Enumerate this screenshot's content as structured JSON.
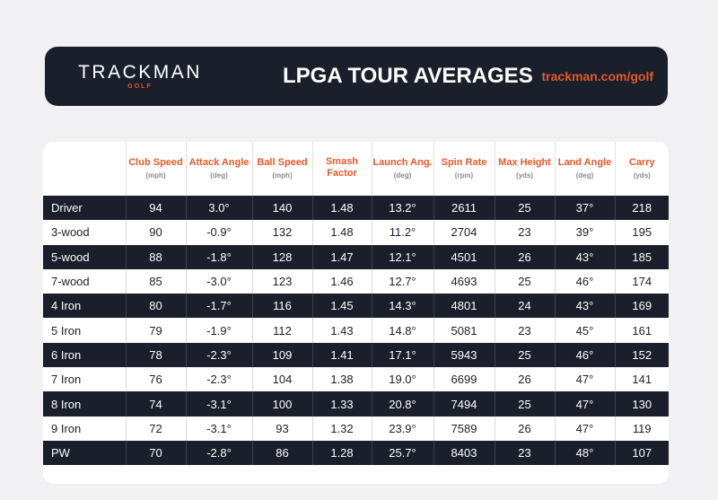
{
  "header": {
    "logo": "TRACKMAN",
    "logo_sub": "GOLF",
    "title": "LPGA TOUR AVERAGES",
    "url": "trackman.com/golf"
  },
  "table": {
    "columns": [
      {
        "name": "",
        "unit": ""
      },
      {
        "name": "Club Speed",
        "unit": "(mph)"
      },
      {
        "name": "Attack Angle",
        "unit": "(deg)"
      },
      {
        "name": "Ball Speed",
        "unit": "(mph)"
      },
      {
        "name": "Smash Factor",
        "unit": ""
      },
      {
        "name": "Launch Ang.",
        "unit": "(deg)"
      },
      {
        "name": "Spin Rate",
        "unit": "(rpm)"
      },
      {
        "name": "Max Height",
        "unit": "(yds)"
      },
      {
        "name": "Land Angle",
        "unit": "(deg)"
      },
      {
        "name": "Carry",
        "unit": "(yds)"
      }
    ],
    "rows": [
      {
        "club": "Driver",
        "club_speed": "94",
        "attack_angle": "3.0°",
        "ball_speed": "140",
        "smash_factor": "1.48",
        "launch_angle": "13.2°",
        "spin_rate": "2611",
        "max_height": "25",
        "land_angle": "37°",
        "carry": "218"
      },
      {
        "club": "3-wood",
        "club_speed": "90",
        "attack_angle": "-0.9°",
        "ball_speed": "132",
        "smash_factor": "1.48",
        "launch_angle": "11.2°",
        "spin_rate": "2704",
        "max_height": "23",
        "land_angle": "39°",
        "carry": "195"
      },
      {
        "club": "5-wood",
        "club_speed": "88",
        "attack_angle": "-1.8°",
        "ball_speed": "128",
        "smash_factor": "1.47",
        "launch_angle": "12.1°",
        "spin_rate": "4501",
        "max_height": "26",
        "land_angle": "43°",
        "carry": "185"
      },
      {
        "club": "7-wood",
        "club_speed": "85",
        "attack_angle": "-3.0°",
        "ball_speed": "123",
        "smash_factor": "1.46",
        "launch_angle": "12.7°",
        "spin_rate": "4693",
        "max_height": "25",
        "land_angle": "46°",
        "carry": "174"
      },
      {
        "club": "4 Iron",
        "club_speed": "80",
        "attack_angle": "-1.7°",
        "ball_speed": "116",
        "smash_factor": "1.45",
        "launch_angle": "14.3°",
        "spin_rate": "4801",
        "max_height": "24",
        "land_angle": "43°",
        "carry": "169"
      },
      {
        "club": "5 Iron",
        "club_speed": "79",
        "attack_angle": "-1.9°",
        "ball_speed": "112",
        "smash_factor": "1.43",
        "launch_angle": "14.8°",
        "spin_rate": "5081",
        "max_height": "23",
        "land_angle": "45°",
        "carry": "161"
      },
      {
        "club": "6 Iron",
        "club_speed": "78",
        "attack_angle": "-2.3°",
        "ball_speed": "109",
        "smash_factor": "1.41",
        "launch_angle": "17.1°",
        "spin_rate": "5943",
        "max_height": "25",
        "land_angle": "46°",
        "carry": "152"
      },
      {
        "club": "7 Iron",
        "club_speed": "76",
        "attack_angle": "-2.3°",
        "ball_speed": "104",
        "smash_factor": "1.38",
        "launch_angle": "19.0°",
        "spin_rate": "6699",
        "max_height": "26",
        "land_angle": "47°",
        "carry": "141"
      },
      {
        "club": "8 Iron",
        "club_speed": "74",
        "attack_angle": "-3.1°",
        "ball_speed": "100",
        "smash_factor": "1.33",
        "launch_angle": "20.8°",
        "spin_rate": "7494",
        "max_height": "25",
        "land_angle": "47°",
        "carry": "130"
      },
      {
        "club": "9 Iron",
        "club_speed": "72",
        "attack_angle": "-3.1°",
        "ball_speed": "93",
        "smash_factor": "1.32",
        "launch_angle": "23.9°",
        "spin_rate": "7589",
        "max_height": "26",
        "land_angle": "47°",
        "carry": "119"
      },
      {
        "club": "PW",
        "club_speed": "70",
        "attack_angle": "-2.8°",
        "ball_speed": "86",
        "smash_factor": "1.28",
        "launch_angle": "25.7°",
        "spin_rate": "8403",
        "max_height": "23",
        "land_angle": "48°",
        "carry": "107"
      }
    ]
  },
  "colors": {
    "navy": "#1b1f2b",
    "accent": "#e35a2a",
    "background": "#f1f1f3"
  }
}
